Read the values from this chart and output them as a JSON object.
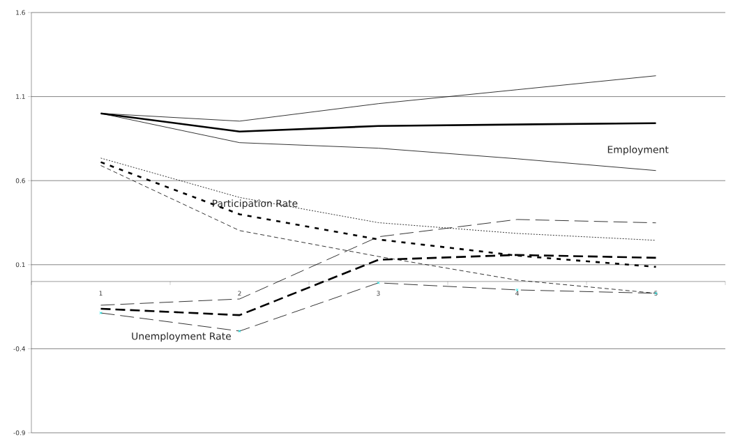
{
  "chart_data": {
    "type": "line",
    "categories": [
      "1",
      "2",
      "3",
      "4",
      "5"
    ],
    "ylim": [
      -0.9,
      1.6
    ],
    "yticks": [
      -0.9,
      -0.4,
      0.1,
      0.6,
      1.1,
      1.6
    ],
    "grid": "y",
    "annotations": [
      "Employment",
      "Participation Rate",
      "Unemployment Rate"
    ],
    "series": [
      {
        "color": "#000000",
        "line_style": "solid",
        "values": [
          1.0,
          0.892,
          0.925,
          0.934,
          0.942
        ]
      },
      {
        "color": "#000000",
        "line_style": "solid",
        "values": [
          1.0,
          0.954,
          1.058,
          1.141,
          1.224
        ]
      },
      {
        "color": "#000000",
        "line_style": "solid",
        "values": [
          1.0,
          0.826,
          0.793,
          0.73,
          0.66
        ]
      },
      {
        "color": "#000000",
        "line_style": "dashed",
        "values": [
          0.71,
          0.4,
          0.25,
          0.154,
          0.087
        ]
      },
      {
        "color": "#000000",
        "line_style": "dotted",
        "values": [
          0.734,
          0.5,
          0.35,
          0.286,
          0.245
        ]
      },
      {
        "color": "#000000",
        "line_style": "dashed",
        "values": [
          0.69,
          0.303,
          0.149,
          0.008,
          -0.07
        ]
      },
      {
        "color": "#000000",
        "line_style": "dashed",
        "values": [
          -0.162,
          -0.2,
          0.129,
          0.158,
          0.141
        ]
      },
      {
        "color": "#000000",
        "line_style": "dashed",
        "values": [
          -0.141,
          -0.104,
          0.266,
          0.369,
          0.349
        ]
      },
      {
        "color": "#000000",
        "line_style": "dashed",
        "marker": "cross",
        "colors": [
          "#00e5e5",
          "#00e5e5",
          "#00e5e5",
          "#00e5e5",
          "#00e5e5"
        ],
        "values": [
          -0.187,
          -0.295,
          -0.008,
          -0.05,
          -0.07
        ]
      }
    ]
  }
}
